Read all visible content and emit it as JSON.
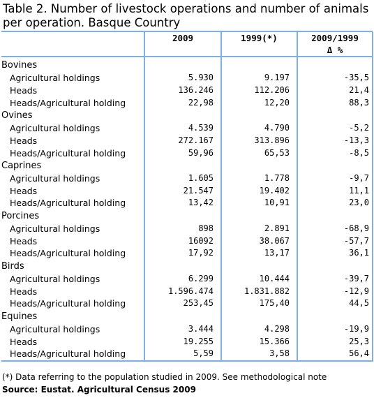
{
  "title": "Table 2. Number of livestock operations and number of animals per operation. Basque Country",
  "columns": {
    "c2009": "2009",
    "c1999": "1999(*)",
    "change": "2009/1999",
    "change_unit": "Δ %"
  },
  "groups": [
    {
      "name": "Bovines",
      "rows": [
        {
          "label": "Agricultural holdings",
          "v2009": "5.930",
          "v1999": "9.197",
          "delta": "-35,5"
        },
        {
          "label": "Heads",
          "v2009": "136.246",
          "v1999": "112.206",
          "delta": "21,4"
        },
        {
          "label": "Heads/Agricultural holding",
          "v2009": "22,98",
          "v1999": "12,20",
          "delta": "88,3"
        }
      ]
    },
    {
      "name": "Ovines",
      "rows": [
        {
          "label": "Agricultural holdings",
          "v2009": "4.539",
          "v1999": "4.790",
          "delta": "-5,2"
        },
        {
          "label": "Heads",
          "v2009": "272.167",
          "v1999": "313.896",
          "delta": "-13,3"
        },
        {
          "label": "Heads/Agricultural holding",
          "v2009": "59,96",
          "v1999": "65,53",
          "delta": "-8,5"
        }
      ]
    },
    {
      "name": "Caprines",
      "rows": [
        {
          "label": "Agricultural holdings",
          "v2009": "1.605",
          "v1999": "1.778",
          "delta": "-9,7"
        },
        {
          "label": "Heads",
          "v2009": "21.547",
          "v1999": "19.402",
          "delta": "11,1"
        },
        {
          "label": "Heads/Agricultural holding",
          "v2009": "13,42",
          "v1999": "10,91",
          "delta": "23,0"
        }
      ]
    },
    {
      "name": "Porcines",
      "rows": [
        {
          "label": "Agricultural holdings",
          "v2009": "898",
          "v1999": "2.891",
          "delta": "-68,9"
        },
        {
          "label": "Heads",
          "v2009": "16092",
          "v1999": "38.067",
          "delta": "-57,7"
        },
        {
          "label": "Heads/Agricultural holding",
          "v2009": "17,92",
          "v1999": "13,17",
          "delta": "36,1"
        }
      ]
    },
    {
      "name": "Birds",
      "rows": [
        {
          "label": "Agricultural holdings",
          "v2009": "6.299",
          "v1999": "10.444",
          "delta": "-39,7"
        },
        {
          "label": "Heads",
          "v2009": "1.596.474",
          "v1999": "1.831.882",
          "delta": "-12,9"
        },
        {
          "label": "Heads/Agricultural holding",
          "v2009": "253,45",
          "v1999": "175,40",
          "delta": "44,5"
        }
      ]
    },
    {
      "name": "Equines",
      "rows": [
        {
          "label": "Agricultural holdings",
          "v2009": "3.444",
          "v1999": "4.298",
          "delta": "-19,9"
        },
        {
          "label": "Heads",
          "v2009": "19.255",
          "v1999": "15.366",
          "delta": "25,3"
        },
        {
          "label": "Heads/Agricultural holding",
          "v2009": "5,59",
          "v1999": "3,58",
          "delta": "56,4"
        }
      ]
    }
  ],
  "note": "(*) Data referring to the population studied in 2009.  See methodological note",
  "source": "Source: Eustat. Agricultural Census 2009",
  "colors": {
    "rule": "#7fb0e4",
    "text": "#000000"
  }
}
